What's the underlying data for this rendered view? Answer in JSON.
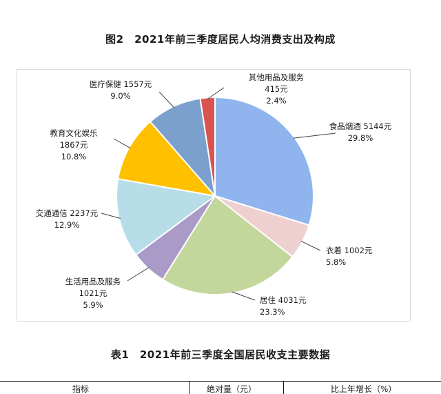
{
  "figure": {
    "title": "图2　2021年前三季度居民人均消费支出及构成"
  },
  "chart_data": {
    "type": "pie",
    "title": "图2　2021年前三季度居民人均消费支出及构成",
    "unit": "元",
    "slices": [
      {
        "name": "食品烟酒",
        "value": 5144,
        "display_value": "5144元",
        "percent": 29.8,
        "percent_label": "29.8%",
        "color": "#8FB4EE"
      },
      {
        "name": "衣着",
        "value": 1002,
        "display_value": "1002元",
        "percent": 5.8,
        "percent_label": "5.8%",
        "color": "#EFD0D0"
      },
      {
        "name": "居住",
        "value": 4031,
        "display_value": "4031元",
        "percent": 23.3,
        "percent_label": "23.3%",
        "color": "#C3D69B"
      },
      {
        "name": "生活用品及服务",
        "value": 1021,
        "display_value": "1021元",
        "percent": 5.9,
        "percent_label": "5.9%",
        "color": "#A99AC8"
      },
      {
        "name": "交通通信",
        "value": 2237,
        "display_value": "2237元",
        "percent": 12.9,
        "percent_label": "12.9%",
        "color": "#B7DEE8"
      },
      {
        "name": "教育文化娱乐",
        "value": 1867,
        "display_value": "1867元",
        "percent": 10.8,
        "percent_label": "10.8%",
        "color": "#FFC000"
      },
      {
        "name": "医疗保健",
        "value": 1557,
        "display_value": "1557元",
        "percent": 9.0,
        "percent_label": "9.0%",
        "color": "#7BA0CD"
      },
      {
        "name": "其他用品及服务",
        "value": 415,
        "display_value": "415元",
        "percent": 2.4,
        "percent_label": "2.4%",
        "color": "#D9534F"
      }
    ],
    "legend": "none",
    "data_labels": "outside-with-leader-lines"
  },
  "table": {
    "title": "表1　2021年前三季度全国居民收支主要数据",
    "header_cells": [
      "指标",
      "绝对量（元）",
      "比上年增长（%）"
    ]
  }
}
